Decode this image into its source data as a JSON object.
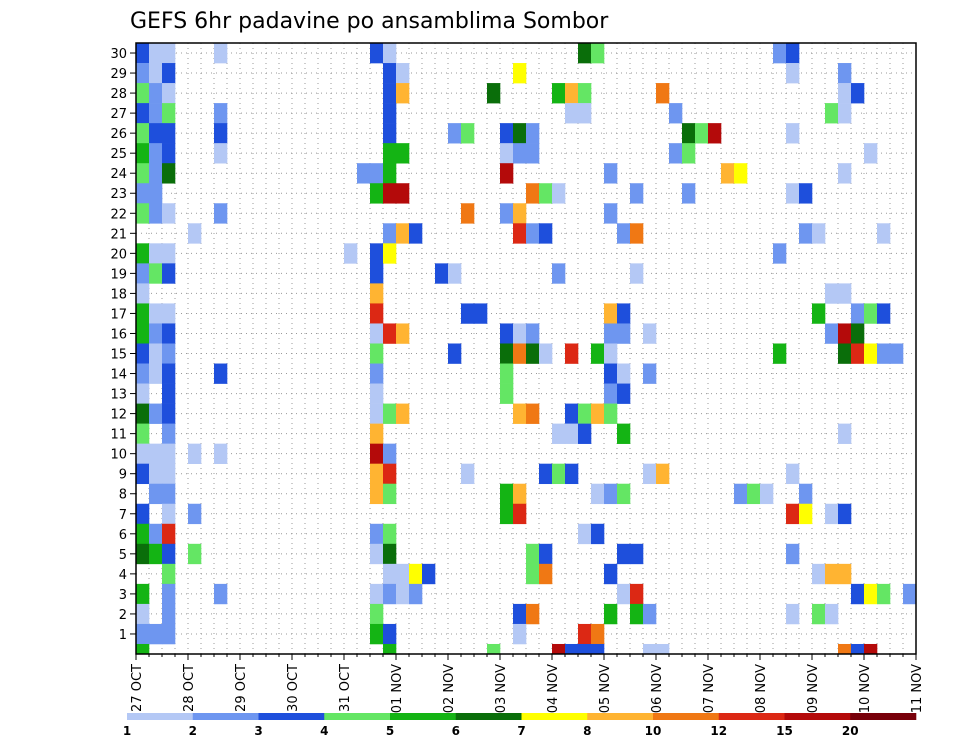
{
  "chart_data": {
    "type": "heatmap",
    "title": "GEFS 6hr padavine po ansamblima Sombor",
    "x_dates": [
      "27 OCT",
      "28 OCT",
      "29 OCT",
      "30 OCT",
      "31 OCT",
      "01 NOV",
      "02 NOV",
      "03 NOV",
      "04 NOV",
      "05 NOV",
      "06 NOV",
      "07 NOV",
      "08 NOV",
      "09 NOV",
      "10 NOV",
      "11 NOV"
    ],
    "time_steps": 61,
    "steps_per_day": 4,
    "members": [
      1,
      2,
      3,
      4,
      5,
      6,
      7,
      8,
      9,
      10,
      11,
      12,
      13,
      14,
      15,
      16,
      17,
      18,
      19,
      20,
      21,
      22,
      23,
      24,
      25,
      26,
      27,
      28,
      29,
      30
    ],
    "grid": true,
    "colorbar": {
      "levels": [
        "1",
        "2",
        "3",
        "4",
        "5",
        "6",
        "7",
        "8",
        "10",
        "12",
        "15",
        "20"
      ],
      "colors": [
        "#b4c8f5",
        "#6e96f0",
        "#1e4fdc",
        "#64e664",
        "#14b414",
        "#0a6e0a",
        "#ffff00",
        "#ffb432",
        "#f07814",
        "#dc2814",
        "#b40a0a",
        "#78000a"
      ]
    },
    "cells": [
      [
        30,
        0,
        2
      ],
      [
        30,
        1,
        0
      ],
      [
        30,
        2,
        0
      ],
      [
        30,
        6,
        0
      ],
      [
        30,
        18,
        2
      ],
      [
        30,
        19,
        0
      ],
      [
        30,
        34,
        5
      ],
      [
        30,
        35,
        3
      ],
      [
        30,
        49,
        1
      ],
      [
        30,
        50,
        2
      ],
      [
        29,
        0,
        1
      ],
      [
        29,
        1,
        0
      ],
      [
        29,
        2,
        2
      ],
      [
        29,
        19,
        2
      ],
      [
        29,
        20,
        0
      ],
      [
        29,
        29,
        6
      ],
      [
        29,
        50,
        0
      ],
      [
        29,
        54,
        1
      ],
      [
        28,
        0,
        3
      ],
      [
        28,
        1,
        1
      ],
      [
        28,
        2,
        0
      ],
      [
        28,
        19,
        2
      ],
      [
        28,
        20,
        7
      ],
      [
        28,
        27,
        5
      ],
      [
        28,
        32,
        4
      ],
      [
        28,
        33,
        7
      ],
      [
        28,
        34,
        3
      ],
      [
        28,
        40,
        8
      ],
      [
        28,
        54,
        0
      ],
      [
        28,
        55,
        2
      ],
      [
        27,
        0,
        2
      ],
      [
        27,
        1,
        1
      ],
      [
        27,
        2,
        3
      ],
      [
        27,
        6,
        1
      ],
      [
        27,
        19,
        2
      ],
      [
        27,
        33,
        0
      ],
      [
        27,
        34,
        0
      ],
      [
        27,
        41,
        1
      ],
      [
        27,
        53,
        3
      ],
      [
        27,
        54,
        0
      ],
      [
        26,
        0,
        3
      ],
      [
        26,
        1,
        2
      ],
      [
        26,
        2,
        2
      ],
      [
        26,
        6,
        2
      ],
      [
        26,
        19,
        2
      ],
      [
        26,
        24,
        1
      ],
      [
        26,
        25,
        3
      ],
      [
        26,
        28,
        2
      ],
      [
        26,
        29,
        5
      ],
      [
        26,
        30,
        1
      ],
      [
        26,
        42,
        5
      ],
      [
        26,
        43,
        3
      ],
      [
        26,
        44,
        10
      ],
      [
        26,
        50,
        0
      ],
      [
        25,
        0,
        4
      ],
      [
        25,
        1,
        1
      ],
      [
        25,
        2,
        2
      ],
      [
        25,
        6,
        0
      ],
      [
        25,
        19,
        4
      ],
      [
        25,
        20,
        4
      ],
      [
        25,
        28,
        0
      ],
      [
        25,
        29,
        1
      ],
      [
        25,
        30,
        1
      ],
      [
        25,
        41,
        1
      ],
      [
        25,
        42,
        3
      ],
      [
        25,
        56,
        0
      ],
      [
        24,
        0,
        3
      ],
      [
        24,
        1,
        1
      ],
      [
        24,
        2,
        5
      ],
      [
        24,
        17,
        1
      ],
      [
        24,
        18,
        1
      ],
      [
        24,
        19,
        4
      ],
      [
        24,
        28,
        10
      ],
      [
        24,
        36,
        1
      ],
      [
        24,
        45,
        7
      ],
      [
        24,
        46,
        6
      ],
      [
        24,
        54,
        0
      ],
      [
        23,
        0,
        1
      ],
      [
        23,
        1,
        1
      ],
      [
        23,
        18,
        4
      ],
      [
        23,
        19,
        10
      ],
      [
        23,
        20,
        10
      ],
      [
        23,
        30,
        8
      ],
      [
        23,
        31,
        3
      ],
      [
        23,
        32,
        0
      ],
      [
        23,
        38,
        1
      ],
      [
        23,
        42,
        1
      ],
      [
        23,
        50,
        0
      ],
      [
        23,
        51,
        2
      ],
      [
        22,
        0,
        3
      ],
      [
        22,
        1,
        1
      ],
      [
        22,
        2,
        0
      ],
      [
        22,
        6,
        1
      ],
      [
        22,
        25,
        8
      ],
      [
        22,
        28,
        1
      ],
      [
        22,
        29,
        7
      ],
      [
        22,
        36,
        1
      ],
      [
        21,
        4,
        0
      ],
      [
        21,
        19,
        1
      ],
      [
        21,
        20,
        7
      ],
      [
        21,
        21,
        2
      ],
      [
        21,
        29,
        9
      ],
      [
        21,
        30,
        1
      ],
      [
        21,
        31,
        2
      ],
      [
        21,
        37,
        1
      ],
      [
        21,
        38,
        8
      ],
      [
        21,
        51,
        1
      ],
      [
        21,
        52,
        0
      ],
      [
        21,
        57,
        0
      ],
      [
        20,
        0,
        4
      ],
      [
        20,
        1,
        0
      ],
      [
        20,
        2,
        0
      ],
      [
        20,
        16,
        0
      ],
      [
        20,
        18,
        2
      ],
      [
        20,
        19,
        6
      ],
      [
        20,
        49,
        1
      ],
      [
        19,
        0,
        1
      ],
      [
        19,
        1,
        3
      ],
      [
        19,
        2,
        2
      ],
      [
        19,
        18,
        2
      ],
      [
        19,
        23,
        2
      ],
      [
        19,
        24,
        0
      ],
      [
        19,
        32,
        1
      ],
      [
        19,
        38,
        0
      ],
      [
        18,
        0,
        0
      ],
      [
        18,
        18,
        7
      ],
      [
        18,
        53,
        0
      ],
      [
        18,
        54,
        0
      ],
      [
        17,
        0,
        4
      ],
      [
        17,
        1,
        0
      ],
      [
        17,
        2,
        0
      ],
      [
        17,
        18,
        9
      ],
      [
        17,
        25,
        2
      ],
      [
        17,
        26,
        2
      ],
      [
        17,
        36,
        7
      ],
      [
        17,
        37,
        2
      ],
      [
        17,
        52,
        4
      ],
      [
        17,
        55,
        1
      ],
      [
        17,
        56,
        3
      ],
      [
        17,
        57,
        2
      ],
      [
        16,
        0,
        4
      ],
      [
        16,
        1,
        1
      ],
      [
        16,
        2,
        2
      ],
      [
        16,
        18,
        0
      ],
      [
        16,
        19,
        9
      ],
      [
        16,
        20,
        7
      ],
      [
        16,
        28,
        2
      ],
      [
        16,
        29,
        0
      ],
      [
        16,
        30,
        1
      ],
      [
        16,
        36,
        1
      ],
      [
        16,
        37,
        1
      ],
      [
        16,
        39,
        0
      ],
      [
        16,
        53,
        1
      ],
      [
        16,
        54,
        10
      ],
      [
        16,
        55,
        5
      ],
      [
        15,
        0,
        2
      ],
      [
        15,
        1,
        0
      ],
      [
        15,
        2,
        1
      ],
      [
        15,
        18,
        3
      ],
      [
        15,
        24,
        2
      ],
      [
        15,
        28,
        5
      ],
      [
        15,
        29,
        8
      ],
      [
        15,
        30,
        5
      ],
      [
        15,
        31,
        0
      ],
      [
        15,
        33,
        9
      ],
      [
        15,
        35,
        4
      ],
      [
        15,
        36,
        0
      ],
      [
        15,
        49,
        4
      ],
      [
        15,
        54,
        5
      ],
      [
        15,
        55,
        9
      ],
      [
        15,
        56,
        6
      ],
      [
        15,
        57,
        1
      ],
      [
        15,
        58,
        1
      ],
      [
        14,
        0,
        1
      ],
      [
        14,
        1,
        0
      ],
      [
        14,
        2,
        2
      ],
      [
        14,
        6,
        2
      ],
      [
        14,
        18,
        1
      ],
      [
        14,
        28,
        3
      ],
      [
        14,
        36,
        2
      ],
      [
        14,
        37,
        0
      ],
      [
        14,
        39,
        1
      ],
      [
        13,
        0,
        0
      ],
      [
        13,
        2,
        2
      ],
      [
        13,
        18,
        0
      ],
      [
        13,
        28,
        3
      ],
      [
        13,
        36,
        1
      ],
      [
        13,
        37,
        2
      ],
      [
        12,
        0,
        5
      ],
      [
        12,
        1,
        1
      ],
      [
        12,
        2,
        2
      ],
      [
        12,
        18,
        0
      ],
      [
        12,
        19,
        3
      ],
      [
        12,
        20,
        7
      ],
      [
        12,
        29,
        7
      ],
      [
        12,
        30,
        8
      ],
      [
        12,
        33,
        2
      ],
      [
        12,
        34,
        3
      ],
      [
        12,
        35,
        7
      ],
      [
        12,
        36,
        3
      ],
      [
        11,
        0,
        3
      ],
      [
        11,
        2,
        1
      ],
      [
        11,
        18,
        7
      ],
      [
        11,
        32,
        0
      ],
      [
        11,
        33,
        0
      ],
      [
        11,
        34,
        2
      ],
      [
        11,
        37,
        4
      ],
      [
        11,
        54,
        0
      ],
      [
        10,
        0,
        0
      ],
      [
        10,
        1,
        0
      ],
      [
        10,
        2,
        0
      ],
      [
        10,
        4,
        0
      ],
      [
        10,
        6,
        0
      ],
      [
        10,
        18,
        10
      ],
      [
        10,
        19,
        1
      ],
      [
        9,
        0,
        2
      ],
      [
        9,
        1,
        0
      ],
      [
        9,
        2,
        0
      ],
      [
        9,
        18,
        7
      ],
      [
        9,
        19,
        9
      ],
      [
        9,
        25,
        0
      ],
      [
        9,
        31,
        2
      ],
      [
        9,
        32,
        3
      ],
      [
        9,
        33,
        2
      ],
      [
        9,
        39,
        0
      ],
      [
        9,
        40,
        7
      ],
      [
        9,
        50,
        0
      ],
      [
        8,
        1,
        1
      ],
      [
        8,
        2,
        1
      ],
      [
        8,
        18,
        7
      ],
      [
        8,
        19,
        3
      ],
      [
        8,
        28,
        4
      ],
      [
        8,
        29,
        7
      ],
      [
        8,
        35,
        0
      ],
      [
        8,
        36,
        1
      ],
      [
        8,
        37,
        3
      ],
      [
        8,
        46,
        1
      ],
      [
        8,
        47,
        3
      ],
      [
        8,
        48,
        0
      ],
      [
        8,
        51,
        1
      ],
      [
        7,
        0,
        2
      ],
      [
        7,
        2,
        0
      ],
      [
        7,
        4,
        1
      ],
      [
        7,
        28,
        4
      ],
      [
        7,
        29,
        9
      ],
      [
        7,
        50,
        9
      ],
      [
        7,
        51,
        6
      ],
      [
        7,
        53,
        0
      ],
      [
        7,
        54,
        2
      ],
      [
        6,
        0,
        4
      ],
      [
        6,
        1,
        1
      ],
      [
        6,
        2,
        9
      ],
      [
        6,
        18,
        1
      ],
      [
        6,
        19,
        3
      ],
      [
        6,
        34,
        0
      ],
      [
        6,
        35,
        2
      ],
      [
        5,
        0,
        5
      ],
      [
        5,
        1,
        4
      ],
      [
        5,
        2,
        2
      ],
      [
        5,
        4,
        3
      ],
      [
        5,
        18,
        0
      ],
      [
        5,
        19,
        5
      ],
      [
        5,
        30,
        3
      ],
      [
        5,
        31,
        2
      ],
      [
        5,
        37,
        2
      ],
      [
        5,
        38,
        2
      ],
      [
        5,
        50,
        1
      ],
      [
        4,
        2,
        3
      ],
      [
        4,
        19,
        0
      ],
      [
        4,
        20,
        0
      ],
      [
        4,
        21,
        6
      ],
      [
        4,
        22,
        2
      ],
      [
        4,
        30,
        3
      ],
      [
        4,
        31,
        8
      ],
      [
        4,
        36,
        2
      ],
      [
        4,
        52,
        0
      ],
      [
        4,
        53,
        7
      ],
      [
        4,
        54,
        7
      ],
      [
        3,
        0,
        4
      ],
      [
        3,
        2,
        1
      ],
      [
        3,
        6,
        1
      ],
      [
        3,
        18,
        0
      ],
      [
        3,
        19,
        1
      ],
      [
        3,
        20,
        0
      ],
      [
        3,
        21,
        1
      ],
      [
        3,
        37,
        0
      ],
      [
        3,
        38,
        9
      ],
      [
        3,
        55,
        2
      ],
      [
        3,
        56,
        6
      ],
      [
        3,
        57,
        3
      ],
      [
        3,
        59,
        1
      ],
      [
        2,
        0,
        0
      ],
      [
        2,
        2,
        1
      ],
      [
        2,
        18,
        3
      ],
      [
        2,
        29,
        2
      ],
      [
        2,
        30,
        8
      ],
      [
        2,
        36,
        4
      ],
      [
        2,
        38,
        4
      ],
      [
        2,
        39,
        1
      ],
      [
        2,
        50,
        0
      ],
      [
        2,
        52,
        3
      ],
      [
        2,
        53,
        0
      ],
      [
        1,
        0,
        1
      ],
      [
        1,
        1,
        1
      ],
      [
        1,
        2,
        1
      ],
      [
        1,
        18,
        4
      ],
      [
        1,
        19,
        2
      ],
      [
        1,
        29,
        0
      ],
      [
        1,
        34,
        9
      ],
      [
        1,
        35,
        8
      ],
      [
        0,
        0,
        4
      ],
      [
        0,
        19,
        4
      ],
      [
        0,
        27,
        3
      ],
      [
        0,
        32,
        10
      ],
      [
        0,
        33,
        2
      ],
      [
        0,
        34,
        2
      ],
      [
        0,
        35,
        2
      ],
      [
        0,
        39,
        0
      ],
      [
        0,
        40,
        0
      ],
      [
        0,
        54,
        8
      ],
      [
        0,
        55,
        2
      ],
      [
        0,
        56,
        10
      ]
    ]
  }
}
